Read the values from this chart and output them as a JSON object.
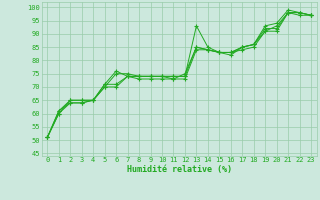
{
  "background_color": "#cce8dd",
  "grid_color": "#99ccaa",
  "line_color": "#22aa22",
  "marker_color": "#22aa22",
  "xlabel": "Humidité relative (%)",
  "xlabel_color": "#22aa22",
  "tick_color": "#22aa22",
  "ylabel_ticks": [
    45,
    50,
    55,
    60,
    65,
    70,
    75,
    80,
    85,
    90,
    95,
    100
  ],
  "xlim": [
    -0.5,
    23.5
  ],
  "ylim": [
    44,
    102
  ],
  "series": [
    [
      51,
      60,
      65,
      65,
      65,
      70,
      75,
      75,
      74,
      74,
      74,
      74,
      74,
      93,
      85,
      83,
      83,
      85,
      86,
      91,
      91,
      98,
      97,
      97
    ],
    [
      51,
      60,
      64,
      64,
      65,
      71,
      71,
      74,
      74,
      74,
      74,
      73,
      73,
      84,
      84,
      83,
      83,
      84,
      85,
      91,
      93,
      98,
      98,
      97
    ],
    [
      51,
      61,
      64,
      64,
      65,
      70,
      70,
      74,
      74,
      74,
      74,
      74,
      74,
      85,
      84,
      83,
      83,
      85,
      86,
      92,
      92,
      98,
      98,
      97
    ],
    [
      51,
      61,
      65,
      65,
      65,
      71,
      76,
      74,
      73,
      73,
      73,
      73,
      75,
      85,
      84,
      83,
      82,
      85,
      86,
      93,
      94,
      99,
      98,
      97
    ]
  ]
}
